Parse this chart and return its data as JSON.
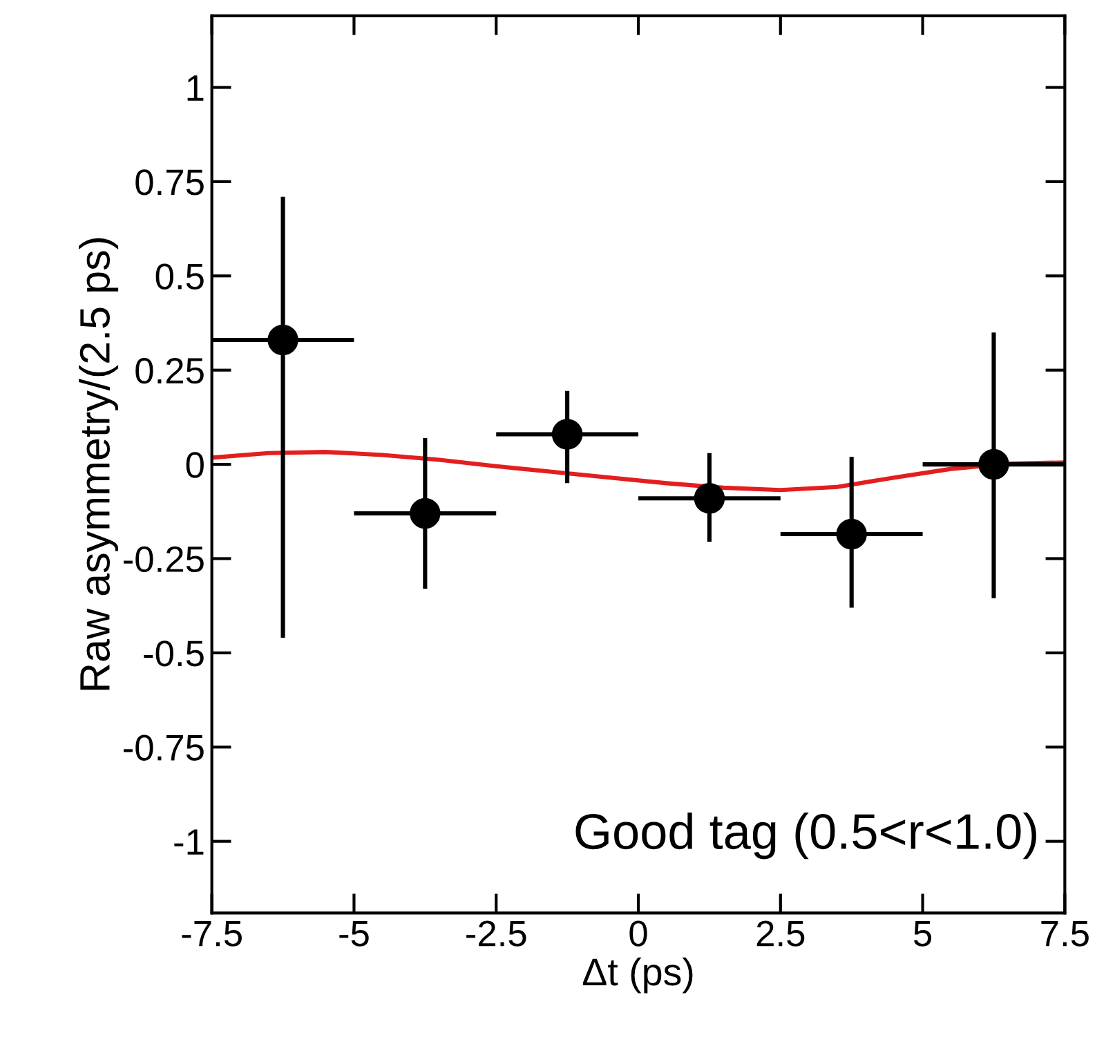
{
  "chart_data": {
    "type": "scatter",
    "xlabel": "Δt (ps)",
    "ylabel": "Raw asymmetry/(2.5 ps)",
    "xlim": [
      -7.5,
      7.5
    ],
    "ylim": [
      -1.19,
      1.19
    ],
    "xticks": [
      -7.5,
      -5,
      -2.5,
      0,
      2.5,
      5,
      7.5
    ],
    "yticks": [
      -1,
      -0.75,
      -0.5,
      -0.25,
      0,
      0.25,
      0.5,
      0.75,
      1
    ],
    "grid": false,
    "legend": false,
    "marker": "circle",
    "series": [
      {
        "color": "#000000",
        "x": [
          -6.25,
          -3.75,
          -1.25,
          1.25,
          3.75,
          6.25
        ],
        "values": [
          0.33,
          -0.13,
          0.08,
          -0.09,
          -0.185,
          0.0
        ],
        "errors": [
          [
            -0.46,
            0.71
          ],
          [
            -0.33,
            0.07
          ],
          [
            -0.05,
            0.195
          ],
          [
            -0.205,
            0.03
          ],
          [
            -0.38,
            0.02
          ],
          [
            -0.355,
            0.35
          ]
        ],
        "xerrors": [
          1.25,
          1.25,
          1.25,
          1.25,
          1.25,
          1.25
        ]
      },
      {
        "type": "line",
        "color": "#e41e1e",
        "marker": "none",
        "line_style": "solid",
        "x": [
          -7.5,
          -6.5,
          -5.5,
          -4.5,
          -3.5,
          -2.5,
          -1.5,
          -0.5,
          0.5,
          1.5,
          2.5,
          3.5,
          4.5,
          5.5,
          6.5,
          7.5
        ],
        "values": [
          0.018,
          0.03,
          0.033,
          0.025,
          0.012,
          -0.005,
          -0.02,
          -0.035,
          -0.05,
          -0.062,
          -0.068,
          -0.06,
          -0.035,
          -0.012,
          0.002,
          0.005
        ]
      }
    ],
    "annotations": [
      "Good tag (0.5<r<1.0)"
    ]
  }
}
